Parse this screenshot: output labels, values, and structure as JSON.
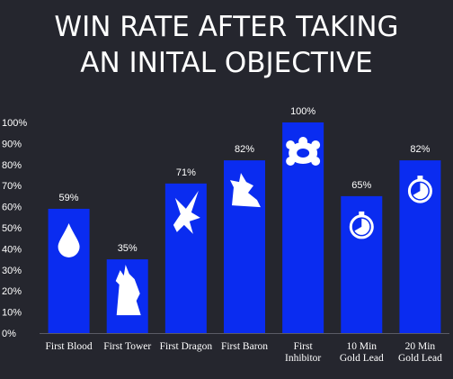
{
  "chart_data": {
    "type": "bar",
    "title_lines": [
      "WIN RATE AFTER TAKING",
      "AN INITAL OBJECTIVE"
    ],
    "categories": [
      [
        "First Blood"
      ],
      [
        "First Tower"
      ],
      [
        "First Dragon"
      ],
      [
        "First Baron"
      ],
      [
        "First",
        "Inhibitor"
      ],
      [
        "10 Min",
        "Gold Lead"
      ],
      [
        "20 Min",
        "Gold Lead"
      ]
    ],
    "values": [
      59,
      35,
      71,
      82,
      100,
      65,
      82
    ],
    "data_labels": [
      "59%",
      "35%",
      "71%",
      "82%",
      "100%",
      "65%",
      "82%"
    ],
    "icons": [
      "blood-drop-icon",
      "tower-icon",
      "dragon-icon",
      "baron-icon",
      "inhibitor-icon",
      "stopwatch-icon",
      "stopwatch-icon"
    ],
    "ylim": [
      0,
      100
    ],
    "yticks": [
      "0%",
      "10%",
      "20%",
      "30%",
      "40%",
      "50%",
      "60%",
      "70%",
      "80%",
      "90%",
      "100%"
    ],
    "grid": false,
    "colors": {
      "bar": "#0a2cf0",
      "background": "#25262e",
      "text": "#ffffff"
    }
  }
}
